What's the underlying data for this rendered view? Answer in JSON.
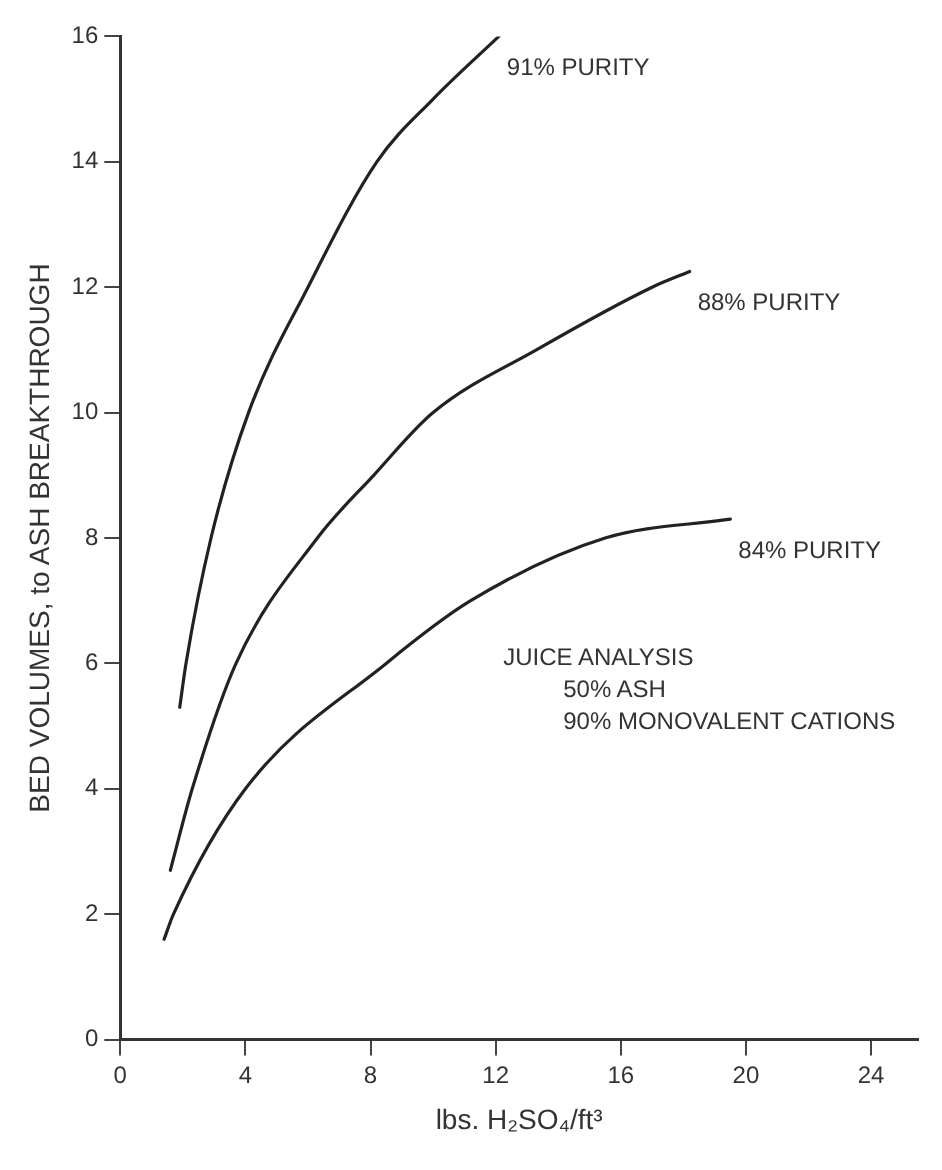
{
  "chart_data": {
    "type": "line",
    "xlabel": "lbs. H₂SO₄/ft³",
    "ylabel": "BED VOLUMES, to ASH BREAKTHROUGH",
    "xlim": [
      0,
      25.5
    ],
    "xticks": [
      0,
      4,
      8,
      12,
      16,
      20,
      24
    ],
    "ylim": [
      0,
      16
    ],
    "yticks": [
      0,
      2,
      4,
      6,
      8,
      10,
      12,
      14,
      16
    ],
    "grid": false,
    "legend": false,
    "marker": "none",
    "line_style": "solid",
    "series": [
      {
        "name": "91% PURITY",
        "color": "#222222",
        "x": [
          1.9,
          2.1,
          2.9,
          4.1,
          6.0,
          8.2,
          10.0,
          12.1
        ],
        "values": [
          5.3,
          6,
          8,
          10,
          12,
          14,
          15,
          16
        ]
      },
      {
        "name": "88% PURITY",
        "color": "#222222",
        "x": [
          1.6,
          2.3,
          3.7,
          6.3,
          8.1,
          10.0,
          13.3,
          17.0,
          18.2
        ],
        "values": [
          2.7,
          4,
          6,
          8,
          9,
          10,
          11,
          12,
          12.25
        ]
      },
      {
        "name": "84% PURITY",
        "color": "#222222",
        "x": [
          1.4,
          1.7,
          4.0,
          8.5,
          11.2,
          15.5,
          19.5
        ],
        "values": [
          1.6,
          2,
          4,
          6,
          7,
          8,
          8.3
        ]
      }
    ],
    "annotations": [
      "JUICE ANALYSIS",
      "50% ASH",
      "90% MONOVALENT CATIONS"
    ]
  }
}
